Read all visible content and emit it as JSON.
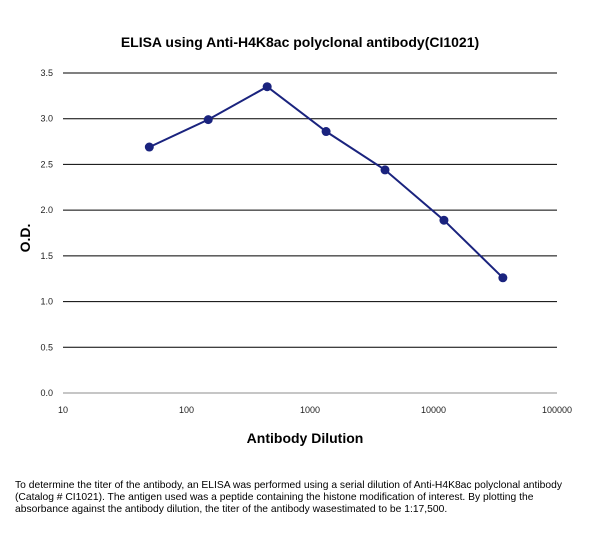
{
  "chart_data": {
    "type": "line",
    "title": "ELISA using Anti-H4K8ac polyclonal antibody(CI1021)",
    "xlabel": "Antibody Dilution",
    "ylabel": "O.D.",
    "x_scale": "log",
    "xlim": [
      10,
      100000
    ],
    "ylim": [
      0,
      3.5
    ],
    "x_ticks": [
      "10",
      "100",
      "1000",
      "10000",
      "100000"
    ],
    "y_ticks": [
      "0.0",
      "0.5",
      "1.0",
      "1.5",
      "2.0",
      "2.5",
      "3.0",
      "3.5"
    ],
    "grid": "horizontal",
    "legend": "none",
    "line_color": "#1a237e",
    "series": [
      {
        "x": [
          50,
          150,
          450,
          1350,
          4050,
          12150,
          36450
        ],
        "y": [
          2.69,
          2.99,
          3.35,
          2.86,
          2.44,
          1.89,
          1.26
        ]
      }
    ]
  },
  "caption": "To determine the titer of the antibody, an ELISA was performed using a serial dilution of Anti-H4K8ac polyclonal antibody (Catalog # CI1021). The antigen used was a peptide containing the histone modification of interest. By plotting the absorbance against the antibody dilution, the titer of the antibody wasestimated to be 1:17,500."
}
